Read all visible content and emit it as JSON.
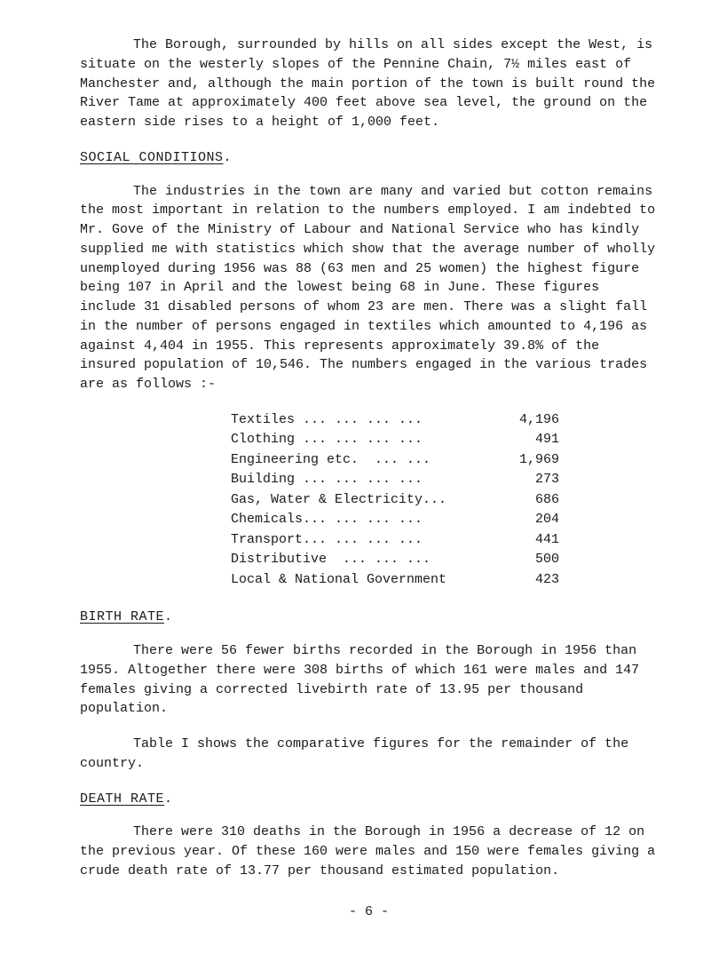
{
  "intro": "The Borough, surrounded by hills on all sides except the West, is situate on the westerly slopes of the Pennine Chain, 7½ miles east of Manchester and, although the main portion of the town is built round the River Tame at approximately 400 feet above sea level, the ground on the eastern side rises to a height of 1,000 feet.",
  "headings": {
    "social": "SOCIAL CONDITIONS",
    "birth": "BIRTH RATE",
    "death": "DEATH RATE"
  },
  "social_para": "The industries in the town are many and varied but cotton remains the most important in relation to the numbers employed.  I am indebted to Mr. Gove of the Ministry of Labour and National Service who has kindly supplied me with statistics which show that the average number of wholly unemployed during 1956 was 88 (63 men and 25 women) the highest figure being 107 in April and the lowest being 68 in June.  These figures include 31 disabled persons of whom 23 are men.  There was a slight fall in the number of persons engaged in textiles which amounted to 4,196 as against 4,404 in 1955.  This represents approximately 39.8% of the insured population of 10,546.  The numbers engaged in the various trades are as follows :-",
  "trades": [
    {
      "label": "Textiles ... ... ... ...",
      "value": "4,196"
    },
    {
      "label": "Clothing ... ... ... ...",
      "value": "491"
    },
    {
      "label": "Engineering etc.  ... ...",
      "value": "1,969"
    },
    {
      "label": "Building ... ... ... ...",
      "value": "273"
    },
    {
      "label": "Gas, Water & Electricity...",
      "value": "686"
    },
    {
      "label": "Chemicals... ... ... ...",
      "value": "204"
    },
    {
      "label": "Transport... ... ... ...",
      "value": "441"
    },
    {
      "label": "Distributive  ... ... ...",
      "value": "500"
    },
    {
      "label": "Local & National Government",
      "value": "423"
    }
  ],
  "birth_para1": "There were 56 fewer births recorded in the Borough in 1956 than 1955.  Altogether there were 308 births of which 161 were males and 147 females giving a corrected livebirth rate of 13.95 per thousand population.",
  "birth_para2": "Table I shows the comparative figures for the remainder of the country.",
  "death_para": "There were 310 deaths in the Borough in 1956 a decrease of 12 on the previous year.  Of these 160 were males and 150 were females giving a crude death rate of 13.77 per thousand estimated population.",
  "page_number": "- 6 -"
}
